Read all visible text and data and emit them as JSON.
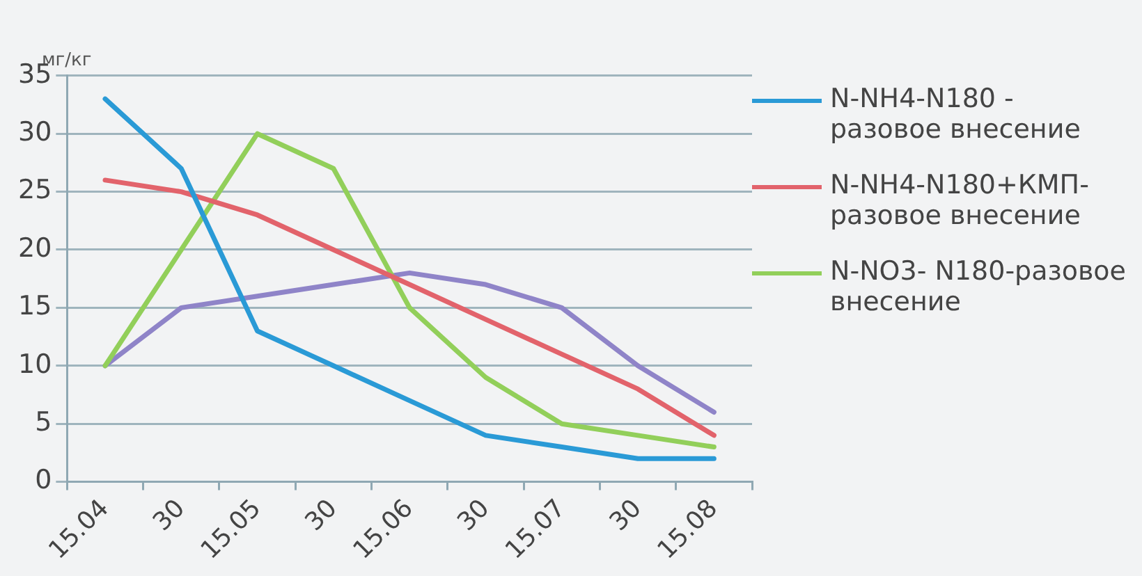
{
  "chart_data": {
    "type": "line",
    "ylabel": "мг/кг",
    "categories": [
      "15.04",
      "30",
      "15.05",
      "30",
      "15.06",
      "30",
      "15.07",
      "30",
      "15.08"
    ],
    "series": [
      {
        "name": "N-NH4-N180 - разовое внесение",
        "color": "#2a9ad6",
        "values": [
          33,
          27,
          13,
          10,
          7,
          4,
          3,
          2,
          2
        ]
      },
      {
        "name": "N-NH4-N180+КМП-разовое внесение",
        "color": "#e2636b",
        "values": [
          26,
          25,
          23,
          20,
          17,
          14,
          11,
          8,
          4
        ]
      },
      {
        "name": "N-NO3- N180-разовое внесение",
        "color": "#92cf5a",
        "values": [
          10,
          20,
          30,
          27,
          15,
          9,
          5,
          4,
          3
        ]
      },
      {
        "color": "#8f84c8",
        "values": [
          10,
          15,
          16,
          17,
          18,
          17,
          15,
          10,
          6
        ]
      }
    ],
    "ylim": [
      0,
      35
    ],
    "yticks": [
      0,
      5,
      10,
      15,
      20,
      25,
      30,
      35
    ],
    "grid": "y",
    "legend": "right",
    "marker": "none",
    "line_style": "solid"
  }
}
